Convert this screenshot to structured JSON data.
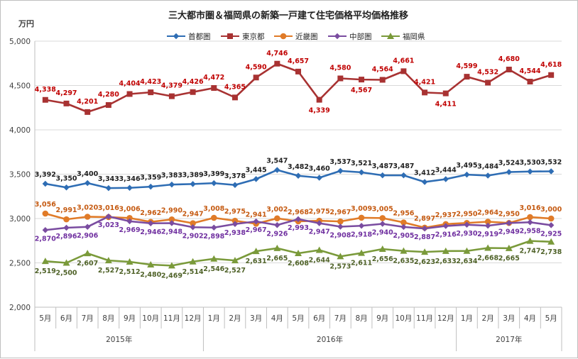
{
  "chart_data": {
    "type": "line",
    "title": "三大都市圏＆福岡県の新築一戸建て住宅価格平均価格推移",
    "ylabel": "万円",
    "ylim": [
      2000,
      5000
    ],
    "yticks": [
      "2,000",
      "2,500",
      "3,000",
      "3,500",
      "4,000",
      "4,500",
      "5,000"
    ],
    "yticks_values": [
      2000,
      2500,
      3000,
      3500,
      4000,
      4500,
      5000
    ],
    "categories": [
      "5月",
      "6月",
      "7月",
      "8月",
      "9月",
      "10月",
      "11月",
      "12月",
      "1月",
      "2月",
      "3月",
      "4月",
      "5月",
      "6月",
      "7月",
      "8月",
      "9月",
      "10月",
      "11月",
      "12月",
      "1月",
      "2月",
      "3月",
      "4月",
      "5月"
    ],
    "year_groups": [
      {
        "label": "2015年",
        "start": 0,
        "end": 7
      },
      {
        "label": "2016年",
        "start": 8,
        "end": 19
      },
      {
        "label": "2017年",
        "start": 20,
        "end": 24
      }
    ],
    "legend_position": "top",
    "grid": true,
    "series": [
      {
        "name": "首都圏",
        "color": "#2e6db4",
        "marker": "diamond",
        "label_color": "#1f1f1f",
        "values": [
          3392,
          3350,
          3400,
          3343,
          3346,
          3359,
          3383,
          3389,
          3399,
          3378,
          3445,
          3547,
          3482,
          3460,
          3537,
          3521,
          3487,
          3487,
          3412,
          3444,
          3495,
          3484,
          3524,
          3530,
          3532
        ],
        "labels": [
          "3,392",
          "3,350",
          "3,400",
          "3,343",
          "3,346",
          "3,359",
          "3,383",
          "3,389",
          "3,399",
          "3,378",
          "3,445",
          "3,547",
          "3,482",
          "3,460",
          "3,537",
          "3,521",
          "3,487",
          "3,487",
          "3,412",
          "3,444",
          "3,495",
          "3,484",
          "3,524",
          "3,530",
          "3,532"
        ]
      },
      {
        "name": "東京都",
        "color": "#a83232",
        "marker": "square",
        "label_color": "#c00000",
        "values": [
          4338,
          4297,
          4201,
          4280,
          4404,
          4423,
          4379,
          4426,
          4472,
          4365,
          4590,
          4746,
          4657,
          4339,
          4580,
          4567,
          4564,
          4661,
          4421,
          4411,
          4599,
          4532,
          4680,
          4544,
          4618
        ],
        "labels": [
          "4,338",
          "4,297",
          "4,201",
          "4,280",
          "4,404",
          "4,423",
          "4,379",
          "4,426",
          "4,472",
          "4,365",
          "4,590",
          "4,746",
          "4,657",
          "4,339",
          "4,580",
          "4,567",
          "4,564",
          "4,661",
          "4,421",
          "4,411",
          "4,599",
          "4,532",
          "4,680",
          "4,544",
          "4,618"
        ]
      },
      {
        "name": "近畿圏",
        "color": "#e07b28",
        "marker": "circle",
        "label_color": "#c55a11",
        "values": [
          3056,
          2991,
          3020,
          3016,
          3006,
          2962,
          2990,
          2947,
          3008,
          2975,
          2941,
          3002,
          2968,
          2975,
          2967,
          3009,
          3005,
          2956,
          2897,
          2937,
          2950,
          2964,
          2950,
          3016,
          3000
        ],
        "labels": [
          "3,056",
          "2,991",
          "3,020",
          "3,016",
          "3,006",
          "2,962",
          "2,990",
          "2,947",
          "3,008",
          "2,975",
          "2,941",
          "3,002",
          "2,968",
          "2,975",
          "2,967",
          "3,009",
          "3,005",
          "2,956",
          "2,897",
          "2,937",
          "2,950",
          "2,964",
          "2,950",
          "3,016",
          "3,000"
        ]
      },
      {
        "name": "中部圏",
        "color": "#7a4ca0",
        "marker": "diamond",
        "label_color": "#7030a0",
        "values": [
          2870,
          2896,
          2906,
          3023,
          2969,
          2946,
          2948,
          2902,
          2898,
          2938,
          2967,
          2926,
          2993,
          2947,
          2908,
          2918,
          2940,
          2905,
          2887,
          2916,
          2930,
          2919,
          2949,
          2958,
          2925
        ],
        "labels": [
          "2,870",
          "2,896",
          "2,906",
          "3,023",
          "2,969",
          "2,946",
          "2,948",
          "2,902",
          "2,898",
          "2,938",
          "2,967",
          "2,926",
          "2,993",
          "2,947",
          "2,908",
          "2,918",
          "2,940",
          "2,905",
          "2,887",
          "2,916",
          "2,930",
          "2,919",
          "2,949",
          "2,958",
          "2,925"
        ]
      },
      {
        "name": "福岡県",
        "color": "#7a9a3a",
        "marker": "triangle",
        "label_color": "#4f6228",
        "values": [
          2519,
          2500,
          2607,
          2527,
          2512,
          2480,
          2469,
          2514,
          2546,
          2527,
          2631,
          2665,
          2608,
          2644,
          2573,
          2611,
          2656,
          2635,
          2623,
          2633,
          2634,
          2668,
          2665,
          2747,
          2738
        ],
        "labels": [
          "2,519",
          "2,500",
          "2,607",
          "2,527",
          "2,512",
          "2,480",
          "2,469",
          "2,514",
          "2,546",
          "2,527",
          "2,631",
          "2,665",
          "2,608",
          "2,644",
          "2,573",
          "2,611",
          "2,656",
          "2,635",
          "2,623",
          "2,633",
          "2,634",
          "2,668",
          "2,665",
          "2,747",
          "2,738"
        ]
      }
    ]
  }
}
